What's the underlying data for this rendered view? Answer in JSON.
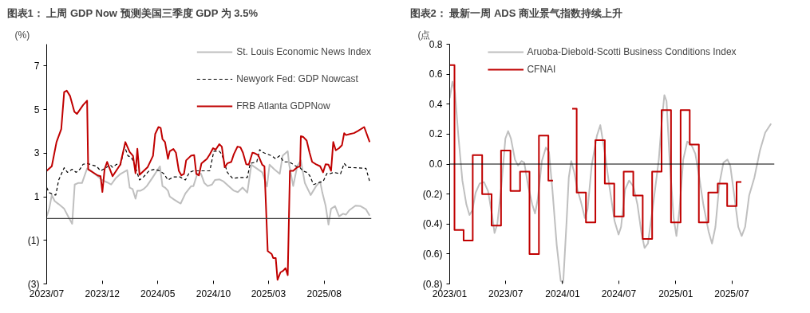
{
  "chart_data": [
    {
      "type": "line",
      "title": "图表1：  上周 GDP Now 预测美国三季度 GDP 为 3.5%",
      "ylabel": "(%)",
      "xlim": [
        "2023-07-01",
        "2025-12-09"
      ],
      "ylim": [
        -3,
        8
      ],
      "xticks": [
        {
          "value": "2023-07-01",
          "label": "2023/07"
        },
        {
          "value": "2023-12-01",
          "label": "2023/12"
        },
        {
          "value": "2024-05-01",
          "label": "2024/05"
        },
        {
          "value": "2024-10-01",
          "label": "2024/10"
        },
        {
          "value": "2025-03-01",
          "label": "2025/03"
        },
        {
          "value": "2025-08-01",
          "label": "2025/08"
        }
      ],
      "yticks": [
        {
          "value": -3,
          "label": "(3)"
        },
        {
          "value": -1,
          "label": "(1)"
        },
        1,
        3,
        5,
        7
      ],
      "legend": "top right",
      "grid": false,
      "ref_lines": [
        {
          "axis": "y",
          "value": 0,
          "color": "#404040"
        }
      ],
      "series": [
        {
          "name": "St. Louis Economic News Index",
          "color": "#bfbfbf",
          "x": [
            "2023-07-01",
            "2023-07-08",
            "2023-07-15",
            "2023-07-23",
            "2023-08-03",
            "2023-08-18",
            "2023-08-29",
            "2023-09-09",
            "2023-09-16",
            "2023-09-25",
            "2023-10-06",
            "2023-10-20",
            "2023-10-31",
            "2023-11-15",
            "2023-11-30",
            "2023-12-14",
            "2023-12-25",
            "2024-01-06",
            "2024-01-20",
            "2024-02-07",
            "2024-02-14",
            "2024-02-22",
            "2024-03-01",
            "2024-03-06",
            "2024-03-15",
            "2024-03-23",
            "2024-04-01",
            "2024-04-18",
            "2024-05-07",
            "2024-05-14",
            "2024-05-21",
            "2024-05-29",
            "2024-06-03",
            "2024-06-15",
            "2024-06-28",
            "2024-07-03",
            "2024-07-16",
            "2024-08-01",
            "2024-08-07",
            "2024-08-18",
            "2024-08-28",
            "2024-09-06",
            "2024-09-15",
            "2024-09-27",
            "2024-10-05",
            "2024-10-17",
            "2024-10-29",
            "2024-11-12",
            "2024-11-26",
            "2024-12-07",
            "2024-12-20",
            "2025-01-02",
            "2025-01-13",
            "2025-01-25",
            "2025-02-12",
            "2025-02-25",
            "2025-03-04",
            "2025-03-17",
            "2025-04-01",
            "2025-04-09",
            "2025-04-23",
            "2025-04-27",
            "2025-05-08",
            "2025-05-19",
            "2025-05-29",
            "2025-06-09",
            "2025-06-25",
            "2025-07-10",
            "2025-07-21",
            "2025-07-27",
            "2025-08-05",
            "2025-08-13",
            "2025-08-20",
            "2025-08-31",
            "2025-09-11",
            "2025-09-22",
            "2025-09-30",
            "2025-10-09",
            "2025-10-26",
            "2025-11-09",
            "2025-11-24",
            "2025-12-04"
          ],
          "values": [
            0.1,
            0.45,
            1.08,
            0.8,
            0.66,
            0.45,
            0.1,
            -0.24,
            1.56,
            1.63,
            1.63,
            2.3,
            2.19,
            1.98,
            1.77,
            1.66,
            1.56,
            1.84,
            2.05,
            2.22,
            1.42,
            1.35,
            0.91,
            1.28,
            1.28,
            1.35,
            1.49,
            1.91,
            2.4,
            1.49,
            1.42,
            1.28,
            1.01,
            0.87,
            0.73,
            0.69,
            1.15,
            1.49,
            1.49,
            2.07,
            2.05,
            1.63,
            1.49,
            1.56,
            1.77,
            1.8,
            1.7,
            1.49,
            1.28,
            1.21,
            1.42,
            1.19,
            2.47,
            2.33,
            2.12,
            1.47,
            2.47,
            2.26,
            2.05,
            2.88,
            3.09,
            2.47,
            1.49,
            2.4,
            2.67,
            1.63,
            1.08,
            1.49,
            1.7,
            1.19,
            0.59,
            -0.28,
            0.45,
            0.57,
            0.1,
            0.22,
            0.18,
            0.38,
            0.59,
            0.57,
            0.42,
            0.13
          ]
        },
        {
          "name": "Newyork Fed: GDP Nowcast",
          "color": "#000000",
          "line_style": "dashed",
          "x": [
            "2023-07-01",
            "2023-07-08",
            "2023-07-19",
            "2023-07-26",
            "2023-08-03",
            "2023-08-18",
            "2023-08-27",
            "2023-09-09",
            "2023-09-20",
            "2023-09-30",
            "2023-10-09",
            "2023-10-20",
            "2023-10-31",
            "2023-11-15",
            "2023-11-26",
            "2023-12-11",
            "2023-12-22",
            "2023-12-29",
            "2024-01-09",
            "2024-01-20",
            "2024-01-31",
            "2024-02-09",
            "2024-02-18",
            "2024-02-25",
            "2024-03-12",
            "2024-03-23",
            "2024-04-07",
            "2024-04-22",
            "2024-05-07",
            "2024-05-18",
            "2024-05-29",
            "2024-06-13",
            "2024-07-01",
            "2024-07-16",
            "2024-07-27",
            "2024-08-07",
            "2024-08-29",
            "2024-09-21",
            "2024-10-02",
            "2024-10-17",
            "2024-10-24",
            "2024-11-08",
            "2024-11-23",
            "2024-12-11",
            "2025-01-02",
            "2025-01-10",
            "2025-01-28",
            "2025-02-05",
            "2025-02-16",
            "2025-03-10",
            "2025-03-21",
            "2025-04-01",
            "2025-04-12",
            "2025-04-27",
            "2025-05-16",
            "2025-05-27",
            "2025-06-03",
            "2025-06-14",
            "2025-06-22",
            "2025-07-03",
            "2025-07-14",
            "2025-07-29",
            "2025-08-09",
            "2025-08-16",
            "2025-08-27",
            "2025-09-15",
            "2025-09-25",
            "2025-10-04",
            "2025-10-26",
            "2025-11-24",
            "2025-12-04"
          ],
          "values": [
            1.42,
            1.19,
            1.1,
            1.08,
            1.77,
            2.33,
            2.12,
            2.26,
            2.12,
            2.26,
            2.49,
            2.53,
            2.47,
            2.4,
            2.19,
            2.33,
            2.47,
            2.35,
            2.49,
            2.47,
            3.3,
            2.88,
            2.81,
            2.6,
            1.77,
            1.91,
            2.19,
            2.26,
            2.19,
            2.05,
            1.77,
            1.91,
            1.91,
            1.77,
            2.12,
            2.19,
            2.19,
            2.19,
            3.09,
            3.09,
            2.95,
            2.12,
            1.84,
            1.88,
            1.88,
            2.53,
            2.6,
            3.16,
            3.02,
            2.88,
            2.74,
            2.88,
            2.6,
            2.6,
            2.4,
            2.33,
            2.19,
            2.12,
            1.98,
            1.56,
            1.63,
            1.7,
            2.08,
            2.05,
            2.12,
            2.05,
            2.53,
            2.35,
            2.33,
            2.3,
            1.7
          ]
        },
        {
          "name": "FRB Atlanta GDPNow",
          "color": "#c00000",
          "x": [
            "2023-07-01",
            "2023-07-15",
            "2023-07-28",
            "2023-08-10",
            "2023-08-18",
            "2023-08-25",
            "2023-09-03",
            "2023-09-15",
            "2023-09-22",
            "2023-10-09",
            "2023-10-20",
            "2023-10-23",
            "2023-11-18",
            "2023-11-26",
            "2023-12-01",
            "2023-12-07",
            "2023-12-14",
            "2023-12-29",
            "2024-01-19",
            "2024-02-02",
            "2024-02-14",
            "2024-02-23",
            "2024-03-01",
            "2024-03-06",
            "2024-03-12",
            "2024-04-03",
            "2024-04-18",
            "2024-04-24",
            "2024-05-03",
            "2024-05-09",
            "2024-05-14",
            "2024-05-21",
            "2024-05-29",
            "2024-06-03",
            "2024-06-13",
            "2024-06-20",
            "2024-06-28",
            "2024-07-05",
            "2024-07-12",
            "2024-07-18",
            "2024-07-31",
            "2024-08-09",
            "2024-08-15",
            "2024-08-22",
            "2024-08-29",
            "2024-09-13",
            "2024-09-21",
            "2024-09-30",
            "2024-10-07",
            "2024-10-17",
            "2024-10-24",
            "2024-11-01",
            "2024-11-08",
            "2024-11-19",
            "2024-11-26",
            "2024-12-06",
            "2024-12-14",
            "2024-12-21",
            "2024-12-30",
            "2025-01-06",
            "2025-01-16",
            "2025-01-23",
            "2025-02-01",
            "2025-02-12",
            "2025-02-18",
            "2025-02-27",
            "2025-03-10",
            "2025-03-14",
            "2025-03-21",
            "2025-03-26",
            "2025-04-03",
            "2025-04-10",
            "2025-04-17",
            "2025-04-23",
            "2025-04-29",
            "2025-05-08",
            "2025-05-19",
            "2025-05-27",
            "2025-05-29",
            "2025-06-05",
            "2025-06-14",
            "2025-06-22",
            "2025-06-29",
            "2025-07-10",
            "2025-07-21",
            "2025-07-29",
            "2025-08-05",
            "2025-08-13",
            "2025-08-20",
            "2025-08-26",
            "2025-09-02",
            "2025-09-11",
            "2025-09-19",
            "2025-09-25",
            "2025-09-30",
            "2025-10-11",
            "2025-10-22",
            "2025-11-02",
            "2025-11-19",
            "2025-11-24",
            "2025-12-04"
          ],
          "values": [
            2.19,
            2.4,
            3.51,
            4.1,
            5.8,
            5.87,
            5.63,
            4.9,
            4.8,
            5.21,
            5.41,
            2.26,
            1.98,
            1.94,
            1.22,
            2.26,
            2.6,
            1.94,
            2.47,
            3.51,
            3.05,
            2.88,
            2.08,
            3.2,
            2.01,
            2.35,
            2.88,
            3.88,
            4.2,
            4.16,
            3.65,
            3.51,
            2.74,
            3.09,
            3.19,
            3.02,
            2.19,
            1.98,
            2.05,
            2.67,
            2.88,
            2.91,
            2.05,
            1.98,
            2.53,
            2.74,
            2.95,
            3.23,
            3.16,
            3.41,
            3.3,
            2.35,
            2.53,
            2.6,
            2.95,
            3.3,
            3.27,
            3.02,
            2.49,
            2.47,
            3.02,
            2.99,
            2.91,
            2.47,
            2.4,
            -1.49,
            -1.63,
            -1.81,
            -1.81,
            -2.81,
            -2.47,
            -2.4,
            -2.28,
            -2.6,
            2.19,
            2.19,
            2.35,
            2.4,
            3.78,
            3.74,
            3.58,
            3.02,
            2.6,
            2.49,
            2.4,
            2.12,
            2.49,
            2.47,
            2.19,
            3.51,
            3.13,
            3.23,
            3.37,
            3.92,
            3.83,
            3.88,
            3.92,
            4.02,
            4.2,
            3.97,
            3.51
          ]
        }
      ]
    },
    {
      "type": "line",
      "title": "图表2：  最新一周 ADS 商业景气指数持续上升",
      "ylabel": "(点",
      "xlim": [
        "2023-01-01",
        "2025-11-16"
      ],
      "ylim": [
        -0.8,
        0.8
      ],
      "xticks": [
        {
          "value": "2023-01-01",
          "label": "2023/01"
        },
        {
          "value": "2023-07-01",
          "label": "2023/07"
        },
        {
          "value": "2024-01-01",
          "label": "2024/01"
        },
        {
          "value": "2024-07-01",
          "label": "2024/07"
        },
        {
          "value": "2025-01-01",
          "label": "2025/01"
        },
        {
          "value": "2025-07-01",
          "label": "2025/07"
        }
      ],
      "yticks": [
        {
          "value": -0.8,
          "label": "(0.8)"
        },
        {
          "value": -0.6,
          "label": "(0.6)"
        },
        {
          "value": -0.4,
          "label": "(0.4)"
        },
        {
          "value": -0.2,
          "label": "(0.2)"
        },
        {
          "value": 0,
          "label": "0.0"
        },
        0.2,
        0.4,
        0.6,
        0.8
      ],
      "legend": "top",
      "grid": false,
      "ref_lines": [
        {
          "axis": "y",
          "value": 0,
          "color": "#000000"
        }
      ],
      "series": [
        {
          "name": "Aruoba-Diebold-Scotti Business Conditions Index",
          "color": "#bfbfbf",
          "x": [
            "2023-01-01",
            "2023-01-10",
            "2023-01-18",
            "2023-01-29",
            "2023-02-11",
            "2023-02-24",
            "2023-03-06",
            "2023-03-15",
            "2023-03-26",
            "2023-04-08",
            "2023-04-22",
            "2023-05-05",
            "2023-05-18",
            "2023-05-26",
            "2023-06-04",
            "2023-06-17",
            "2023-06-30",
            "2023-07-09",
            "2023-07-18",
            "2023-07-31",
            "2023-08-10",
            "2023-08-21",
            "2023-08-30",
            "2023-09-12",
            "2023-09-25",
            "2023-10-04",
            "2023-10-13",
            "2023-10-26",
            "2023-11-08",
            "2023-11-18",
            "2023-11-29",
            "2023-12-13",
            "2023-12-26",
            "2024-01-03",
            "2024-01-14",
            "2024-01-21",
            "2024-01-29",
            "2024-02-07",
            "2024-02-18",
            "2024-02-29",
            "2024-03-13",
            "2024-03-22",
            "2024-04-04",
            "2024-04-21",
            "2024-05-02",
            "2024-05-17",
            "2024-05-30",
            "2024-06-17",
            "2024-06-30",
            "2024-07-08",
            "2024-07-21",
            "2024-08-03",
            "2024-08-17",
            "2024-08-30",
            "2024-09-12",
            "2024-09-22",
            "2024-10-03",
            "2024-10-21",
            "2024-11-07",
            "2024-11-16",
            "2024-11-25",
            "2024-12-02",
            "2024-12-12",
            "2024-12-25",
            "2025-01-03",
            "2025-01-13",
            "2025-01-25",
            "2025-02-07",
            "2025-02-20",
            "2025-03-05",
            "2025-03-18",
            "2025-03-31",
            "2025-04-17",
            "2025-04-28",
            "2025-05-09",
            "2025-05-22",
            "2025-06-04",
            "2025-06-17",
            "2025-06-26",
            "2025-07-09",
            "2025-07-22",
            "2025-08-02",
            "2025-08-13",
            "2025-08-26",
            "2025-09-12",
            "2025-09-30",
            "2025-10-17",
            "2025-11-05"
          ],
          "values": [
            0.44,
            0.55,
            0.48,
            0.19,
            -0.11,
            -0.27,
            -0.34,
            -0.31,
            -0.19,
            -0.13,
            -0.12,
            -0.18,
            -0.34,
            -0.46,
            -0.4,
            -0.15,
            0.17,
            0.22,
            0.17,
            0.03,
            -0.01,
            0.02,
            0.01,
            -0.15,
            -0.27,
            -0.33,
            -0.23,
            0.02,
            0.11,
            0.08,
            -0.17,
            -0.54,
            -0.78,
            -0.79,
            -0.38,
            -0.09,
            0.02,
            -0.05,
            -0.17,
            -0.25,
            -0.36,
            -0.3,
            -0.01,
            0.19,
            0.26,
            0.07,
            -0.13,
            -0.38,
            -0.47,
            -0.42,
            -0.17,
            -0.11,
            -0.15,
            -0.27,
            -0.46,
            -0.56,
            -0.53,
            -0.25,
            0.03,
            0.27,
            0.46,
            0.42,
            0.03,
            -0.36,
            -0.48,
            -0.3,
            0.03,
            0.15,
            0.13,
            0.07,
            -0.09,
            -0.27,
            -0.45,
            -0.53,
            -0.42,
            -0.13,
            0.01,
            0.03,
            -0.01,
            -0.21,
            -0.42,
            -0.48,
            -0.42,
            -0.21,
            -0.09,
            0.09,
            0.21,
            0.27
          ]
        },
        {
          "name": "CFNAI",
          "color": "#c00000",
          "type": "step",
          "x": [
            "2023-01",
            "2023-02",
            "2023-03",
            "2023-04",
            "2023-05",
            "2023-06",
            "2023-07",
            "2023-08",
            "2023-09",
            "2023-10",
            "2023-11",
            "2023-12",
            "2024-01",
            "2024-02",
            "2024-03",
            "2024-04",
            "2024-05",
            "2024-06",
            "2024-07",
            "2024-08",
            "2024-09",
            "2024-10",
            "2024-11",
            "2024-12",
            "2025-01",
            "2025-02",
            "2025-03",
            "2025-04",
            "2025-05",
            "2025-06",
            "2025-07",
            "2025-08"
          ],
          "values": [
            0.66,
            -0.44,
            -0.51,
            0.06,
            -0.2,
            -0.41,
            0.09,
            -0.18,
            -0.05,
            -0.6,
            0.19,
            -0.11,
            null,
            0.37,
            -0.19,
            -0.39,
            0.16,
            -0.13,
            -0.35,
            -0.05,
            -0.21,
            -0.5,
            -0.05,
            0.36,
            -0.39,
            0.36,
            0.13,
            -0.39,
            -0.19,
            -0.13,
            -0.28,
            -0.12
          ]
        }
      ]
    }
  ]
}
